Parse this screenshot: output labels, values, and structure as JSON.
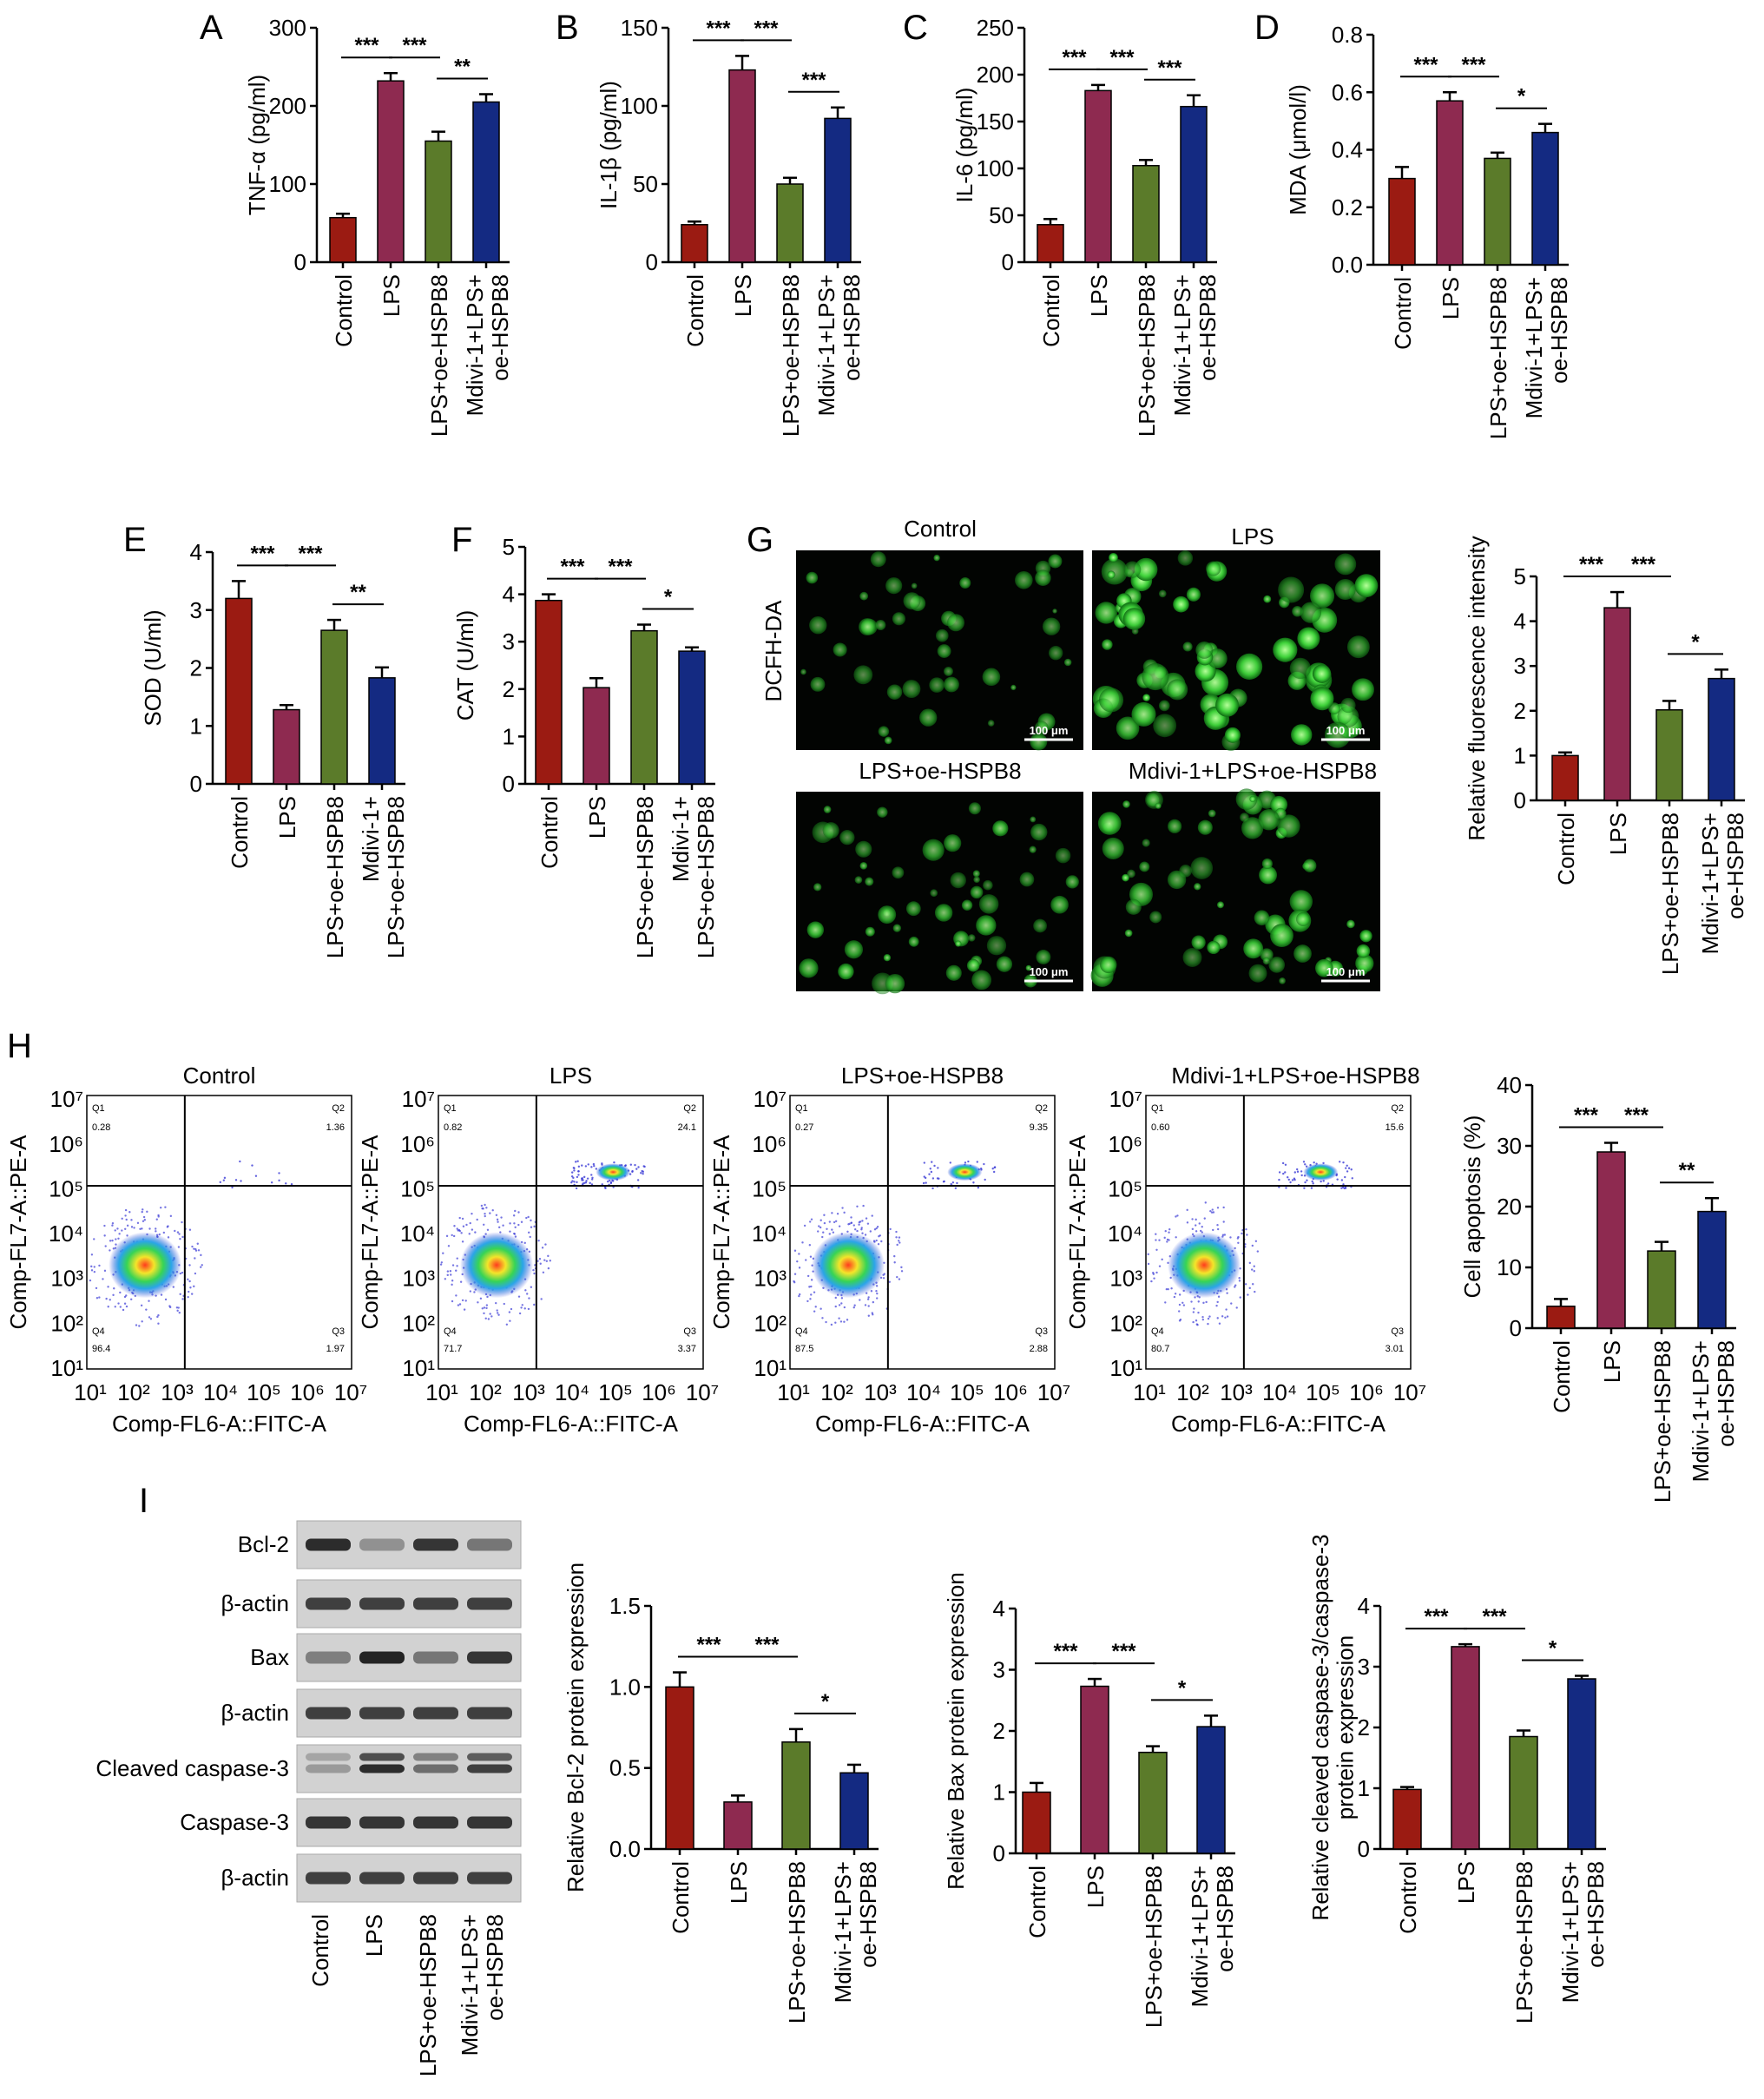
{
  "colors": {
    "red": "#9b1b12",
    "maroon": "#8e2a50",
    "green": "#5b7b2a",
    "navy": "#142a82",
    "err": "#000000"
  },
  "fluor_panels": [
    {
      "label": "Control",
      "scale": "100 μm",
      "intensity": 0.35
    },
    {
      "label": "LPS",
      "scale": "100 μm",
      "intensity": 1.0
    },
    {
      "label": "LPS+oe-HSPB8",
      "scale": "100 μm",
      "intensity": 0.6
    },
    {
      "label": "Mdivi-1+LPS+oe-HSPB8",
      "scale": "100 μm",
      "intensity": 0.75
    }
  ],
  "fluor_ylabel": "DCFH-DA",
  "flow_panels": [
    {
      "title": "Control",
      "q1": "0.28",
      "q2": "1.36",
      "q3": "1.97",
      "q4": "96.4"
    },
    {
      "title": "LPS",
      "q1": "0.82",
      "q2": "24.1",
      "q3": "3.37",
      "q4": "71.7"
    },
    {
      "title": "LPS+oe-HSPB8",
      "q1": "0.27",
      "q2": "9.35",
      "q3": "2.88",
      "q4": "87.5"
    },
    {
      "title": "Mdivi-1+LPS+oe-HSPB8",
      "q1": "0.60",
      "q2": "15.6",
      "q3": "3.01",
      "q4": "80.7"
    }
  ],
  "flow_axes": {
    "xlabel": "Comp-FL6-A::FITC-A",
    "ylabel": "Comp-FL7-A::PE-A",
    "ticks": [
      "10¹",
      "10²",
      "10³",
      "10⁴",
      "10⁵",
      "10⁶",
      "10⁷"
    ],
    "quadrants": [
      "Q1",
      "Q2",
      "Q3",
      "Q4"
    ]
  },
  "western": {
    "rows": [
      "Bcl-2",
      "β-actin",
      "Bax",
      "β-actin",
      "Cleaved caspase-3",
      "Caspase-3",
      "β-actin"
    ],
    "lanes": [
      "Control",
      "LPS",
      "LPS+oe-HSPB8",
      "Mdivi-1+LPS+\noe-HSPB8"
    ],
    "intensity": [
      [
        0.9,
        0.35,
        0.85,
        0.5
      ],
      [
        0.8,
        0.8,
        0.8,
        0.8
      ],
      [
        0.45,
        0.95,
        0.5,
        0.85
      ],
      [
        0.8,
        0.8,
        0.8,
        0.8
      ],
      [
        0.3,
        0.9,
        0.55,
        0.8
      ],
      [
        0.85,
        0.85,
        0.85,
        0.85
      ],
      [
        0.8,
        0.8,
        0.8,
        0.8
      ]
    ]
  },
  "chart_data": [
    {
      "panel": "A",
      "type": "bar",
      "categories": [
        "Control",
        "LPS",
        "LPS+oe-HSPB8",
        "Mdivi-1+LPS+\noe-HSPB8"
      ],
      "values": [
        57,
        232,
        155,
        205
      ],
      "errors": [
        5,
        10,
        12,
        10
      ],
      "ylabel": "TNF-α (pg/ml)",
      "ylim": [
        0,
        300
      ],
      "yticks": [
        "0",
        "100",
        "200",
        "300"
      ],
      "sig": [
        {
          "from": 0,
          "to": 1,
          "label": "***"
        },
        {
          "from": 1,
          "to": 2,
          "label": "***"
        },
        {
          "from": 2,
          "to": 3,
          "label": "**"
        }
      ]
    },
    {
      "panel": "B",
      "type": "bar",
      "categories": [
        "Control",
        "LPS",
        "LPS+oe-HSPB8",
        "Mdivi-1+LPS+\noe-HSPB8"
      ],
      "values": [
        24,
        123,
        50,
        92
      ],
      "errors": [
        2,
        9,
        4,
        7
      ],
      "ylabel": "IL-1β (pg/ml)",
      "ylim": [
        0,
        150
      ],
      "yticks": [
        "0",
        "50",
        "100",
        "150"
      ],
      "sig": [
        {
          "from": 0,
          "to": 1,
          "label": "***"
        },
        {
          "from": 1,
          "to": 2,
          "label": "***"
        },
        {
          "from": 2,
          "to": 3,
          "label": "***"
        }
      ]
    },
    {
      "panel": "C",
      "type": "bar",
      "categories": [
        "Control",
        "LPS",
        "LPS+oe-HSPB8",
        "Mdivi-1+LPS+\noe-HSPB8"
      ],
      "values": [
        40,
        183,
        103,
        166
      ],
      "errors": [
        6,
        6,
        6,
        12
      ],
      "ylabel": "IL-6 (pg/ml)",
      "ylim": [
        0,
        250
      ],
      "yticks": [
        "0",
        "50",
        "100",
        "150",
        "200",
        "250"
      ],
      "sig": [
        {
          "from": 0,
          "to": 1,
          "label": "***"
        },
        {
          "from": 1,
          "to": 2,
          "label": "***"
        },
        {
          "from": 2,
          "to": 3,
          "label": "***"
        }
      ]
    },
    {
      "panel": "D",
      "type": "bar",
      "categories": [
        "Control",
        "LPS",
        "LPS+oe-HSPB8",
        "Mdivi-1+LPS+\noe-HSPB8"
      ],
      "values": [
        0.3,
        0.57,
        0.37,
        0.46
      ],
      "errors": [
        0.04,
        0.03,
        0.02,
        0.03
      ],
      "ylabel": "MDA (μmol/l)",
      "ylim": [
        0,
        0.8
      ],
      "yticks": [
        "0.0",
        "0.2",
        "0.4",
        "0.6",
        "0.8"
      ],
      "sig": [
        {
          "from": 0,
          "to": 1,
          "label": "***"
        },
        {
          "from": 1,
          "to": 2,
          "label": "***"
        },
        {
          "from": 2,
          "to": 3,
          "label": "*"
        }
      ]
    },
    {
      "panel": "E",
      "type": "bar",
      "categories": [
        "Control",
        "LPS",
        "LPS+oe-HSPB8",
        "Mdivi-1+\nLPS+oe-HSPB8"
      ],
      "values": [
        3.2,
        1.28,
        2.65,
        1.83
      ],
      "errors": [
        0.3,
        0.08,
        0.18,
        0.18
      ],
      "ylabel": "SOD (U/ml)",
      "ylim": [
        0,
        4
      ],
      "yticks": [
        "0",
        "1",
        "2",
        "3",
        "4"
      ],
      "sig": [
        {
          "from": 0,
          "to": 1,
          "label": "***"
        },
        {
          "from": 1,
          "to": 2,
          "label": "***"
        },
        {
          "from": 2,
          "to": 3,
          "label": "**"
        }
      ]
    },
    {
      "panel": "F",
      "type": "bar",
      "categories": [
        "Control",
        "LPS",
        "LPS+oe-HSPB8",
        "Mdivi-1+\nLPS+oe-HSPB8"
      ],
      "values": [
        3.87,
        2.03,
        3.23,
        2.8
      ],
      "errors": [
        0.13,
        0.2,
        0.13,
        0.08
      ],
      "ylabel": "CAT (U/ml)",
      "ylim": [
        0,
        5
      ],
      "yticks": [
        "0",
        "1",
        "2",
        "3",
        "4",
        "5"
      ],
      "sig": [
        {
          "from": 0,
          "to": 1,
          "label": "***"
        },
        {
          "from": 1,
          "to": 2,
          "label": "***"
        },
        {
          "from": 2,
          "to": 3,
          "label": "*"
        }
      ]
    },
    {
      "panel": "G",
      "type": "bar",
      "categories": [
        "Control",
        "LPS",
        "LPS+oe-HSPB8",
        "Mdivi-1+LPS+\noe-HSPB8"
      ],
      "values": [
        1.0,
        4.3,
        2.02,
        2.72
      ],
      "errors": [
        0.07,
        0.35,
        0.2,
        0.2
      ],
      "ylabel": "Relative fluorescence intensity",
      "ylim": [
        0,
        5
      ],
      "yticks": [
        "0",
        "1",
        "2",
        "3",
        "4",
        "5"
      ],
      "sig": [
        {
          "from": 0,
          "to": 1,
          "label": "***"
        },
        {
          "from": 1,
          "to": 2,
          "label": "***"
        },
        {
          "from": 2,
          "to": 3,
          "label": "*"
        }
      ]
    },
    {
      "panel": "H",
      "type": "bar",
      "categories": [
        "Control",
        "LPS",
        "LPS+oe-HSPB8",
        "Mdivi-1+LPS+\noe-HSPB8"
      ],
      "values": [
        3.6,
        29,
        12.7,
        19.2
      ],
      "errors": [
        1.2,
        1.5,
        1.5,
        2.2
      ],
      "ylabel": "Cell apoptosis (%)",
      "ylim": [
        0,
        40
      ],
      "yticks": [
        "0",
        "10",
        "20",
        "30",
        "40"
      ],
      "sig": [
        {
          "from": 0,
          "to": 1,
          "label": "***"
        },
        {
          "from": 1,
          "to": 2,
          "label": "***"
        },
        {
          "from": 2,
          "to": 3,
          "label": "**"
        }
      ]
    },
    {
      "panel": "I1",
      "type": "bar",
      "categories": [
        "Control",
        "LPS",
        "LPS+oe-HSPB8",
        "Mdivi-1+LPS+\noe-HSPB8"
      ],
      "values": [
        1.0,
        0.29,
        0.66,
        0.47
      ],
      "errors": [
        0.09,
        0.04,
        0.08,
        0.05
      ],
      "ylabel": "Relative Bcl-2 protein expression",
      "ylim": [
        0,
        1.5
      ],
      "yticks": [
        "0.0",
        "0.5",
        "1.0",
        "1.5"
      ],
      "sig": [
        {
          "from": 0,
          "to": 1,
          "label": "***"
        },
        {
          "from": 1,
          "to": 2,
          "label": "***"
        },
        {
          "from": 2,
          "to": 3,
          "label": "*"
        }
      ]
    },
    {
      "panel": "I2",
      "type": "bar",
      "categories": [
        "Control",
        "LPS",
        "LPS+oe-HSPB8",
        "Mdivi-1+LPS+\noe-HSPB8"
      ],
      "values": [
        1.0,
        2.73,
        1.65,
        2.07
      ],
      "errors": [
        0.15,
        0.12,
        0.1,
        0.18
      ],
      "ylabel": "Relative Bax protein expression",
      "ylim": [
        0,
        4
      ],
      "yticks": [
        "0",
        "1",
        "2",
        "3",
        "4"
      ],
      "sig": [
        {
          "from": 0,
          "to": 1,
          "label": "***"
        },
        {
          "from": 1,
          "to": 2,
          "label": "***"
        },
        {
          "from": 2,
          "to": 3,
          "label": "*"
        }
      ]
    },
    {
      "panel": "I3",
      "type": "bar",
      "categories": [
        "Control",
        "LPS",
        "LPS+oe-HSPB8",
        "Mdivi-1+LPS+\noe-HSPB8"
      ],
      "values": [
        0.98,
        3.33,
        1.85,
        2.8
      ],
      "errors": [
        0.04,
        0.04,
        0.1,
        0.05
      ],
      "ylabel": "Relative cleaved caspase-3/caspase-3\nprotein expression",
      "ylim": [
        0,
        4
      ],
      "yticks": [
        "0",
        "1",
        "2",
        "3",
        "4"
      ],
      "sig": [
        {
          "from": 0,
          "to": 1,
          "label": "***"
        },
        {
          "from": 1,
          "to": 2,
          "label": "***"
        },
        {
          "from": 2,
          "to": 3,
          "label": "*"
        }
      ]
    }
  ]
}
